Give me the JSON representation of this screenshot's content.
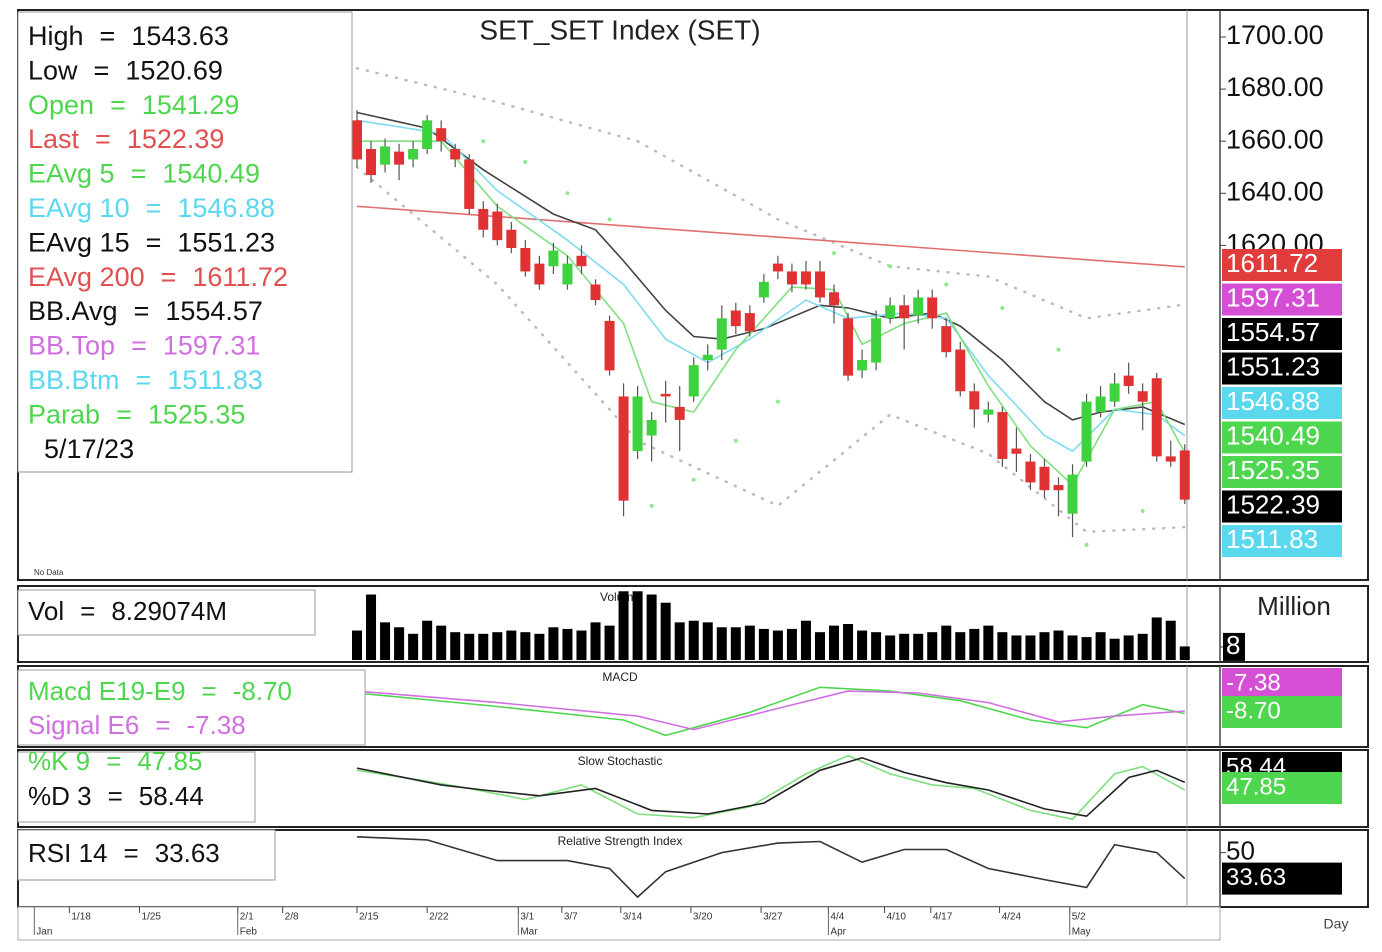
{
  "chart_data": [
    {
      "type": "candlestick",
      "title": "SET_SET Index (SET)",
      "date": "5/17/23",
      "no_data": "No Data",
      "ylim": [
        1492.3,
        1709.6
      ],
      "yticks": [
        {
          "value": 1700,
          "label": "1700.00"
        },
        {
          "value": 1680,
          "label": "1680.00"
        },
        {
          "value": 1660,
          "label": "1660.00"
        },
        {
          "value": 1640,
          "label": "1640.00"
        },
        {
          "value": 1620,
          "label": "1620.00"
        }
      ],
      "up_color": "#3fd23f",
      "down_color": "#e03232",
      "info": [
        {
          "label": "High",
          "eq": "=",
          "value": "1543.63",
          "color": "#111111"
        },
        {
          "label": "Low",
          "eq": "=",
          "value": "1520.69",
          "color": "#111111"
        },
        {
          "label": "Open",
          "eq": "=",
          "value": "1541.29",
          "color": "#4fd64f"
        },
        {
          "label": "Last",
          "eq": "=",
          "value": "1522.39",
          "color": "#e05050"
        },
        {
          "label": "EAvg 5",
          "eq": "=",
          "value": "1540.49",
          "color": "#4fd64f"
        },
        {
          "label": "EAvg 10",
          "eq": "=",
          "value": "1546.88",
          "color": "#5cd8ee"
        },
        {
          "label": "EAvg 15",
          "eq": "=",
          "value": "1551.23",
          "color": "#111111"
        },
        {
          "label": "EAvg 200",
          "eq": "=",
          "value": "1611.72",
          "color": "#e05050"
        },
        {
          "label": "BB.Avg",
          "eq": "=",
          "value": "1554.57",
          "color": "#111111"
        },
        {
          "label": "BB.Top",
          "eq": "=",
          "value": "1597.31",
          "color": "#d070e0"
        },
        {
          "label": "BB.Btm",
          "eq": "=",
          "value": "1511.83",
          "color": "#5cd8ee"
        },
        {
          "label": "Parab",
          "eq": "=",
          "value": "1525.35",
          "color": "#4fd64f"
        }
      ],
      "candles": {
        "open": [
          1668,
          1657,
          1651,
          1656,
          1653,
          1657,
          1665,
          1657,
          1653,
          1634,
          1633,
          1626,
          1619,
          1613,
          1612,
          1605,
          1616,
          1605,
          1591,
          1562,
          1541,
          1547,
          1563,
          1558,
          1562,
          1576,
          1580,
          1595,
          1594,
          1600,
          1613,
          1610,
          1610,
          1610,
          1602,
          1592,
          1572,
          1575,
          1592,
          1597,
          1593,
          1600,
          1589,
          1580,
          1564,
          1555,
          1556,
          1542,
          1537,
          1535,
          1528,
          1517,
          1537,
          1556,
          1560,
          1570,
          1564,
          1569,
          1539,
          1541.29
        ],
        "high": [
          1672,
          1660,
          1661,
          1659,
          1660,
          1670,
          1668,
          1659,
          1655,
          1637,
          1636,
          1629,
          1622,
          1616,
          1621,
          1616,
          1620,
          1607,
          1593,
          1567,
          1566,
          1556,
          1568,
          1566,
          1577,
          1582,
          1597,
          1598,
          1597,
          1609,
          1616,
          1613,
          1614,
          1614,
          1605,
          1594,
          1580,
          1595,
          1600,
          1601,
          1603,
          1603,
          1592,
          1583,
          1567,
          1560,
          1558,
          1550,
          1540,
          1538,
          1531,
          1536,
          1563,
          1566,
          1571,
          1575,
          1567,
          1571,
          1545,
          1543.63
        ],
        "low": [
          1650,
          1644,
          1648,
          1645,
          1650,
          1655,
          1656,
          1650,
          1632,
          1623,
          1620,
          1617,
          1608,
          1603,
          1609,
          1603,
          1609,
          1597,
          1570,
          1516,
          1538,
          1537,
          1552,
          1541,
          1560,
          1572,
          1576,
          1586,
          1585,
          1598,
          1607,
          1602,
          1603,
          1598,
          1590,
          1568,
          1569,
          1572,
          1590,
          1580,
          1590,
          1588,
          1577,
          1562,
          1550,
          1552,
          1535,
          1533,
          1526,
          1523,
          1516,
          1508,
          1535,
          1554,
          1558,
          1563,
          1549,
          1537,
          1535,
          1520.69
        ],
        "close": [
          1653,
          1647,
          1658,
          1651,
          1657,
          1668,
          1660,
          1653,
          1634,
          1626,
          1622,
          1619,
          1610,
          1605,
          1618,
          1613,
          1612,
          1599,
          1572,
          1522,
          1562,
          1553,
          1562,
          1553,
          1574,
          1578,
          1592,
          1589,
          1587,
          1606,
          1610,
          1605,
          1605,
          1600,
          1597,
          1570,
          1576,
          1592,
          1597,
          1592,
          1600,
          1592,
          1579,
          1564,
          1557,
          1557,
          1538,
          1540,
          1529,
          1526,
          1526,
          1532,
          1560,
          1562,
          1567,
          1566,
          1560,
          1539,
          1537,
          1522.39
        ]
      },
      "overlays": [
        {
          "color": "#bbbbbb",
          "dash": true,
          "x": [
            0,
            10,
            20,
            30,
            38,
            45,
            52,
            59
          ],
          "values": [
            1688,
            1675,
            1660,
            1630,
            1612,
            1608,
            1592,
            1597.31
          ]
        },
        {
          "color": "#bbbbbb",
          "dash": true,
          "x": [
            0,
            10,
            20,
            30,
            38,
            45,
            52,
            59
          ],
          "values": [
            1650,
            1605,
            1545,
            1520,
            1555,
            1540,
            1510,
            1511.83
          ]
        },
        {
          "color": "#e07070",
          "x": [
            0,
            59
          ],
          "values": [
            1635,
            1611.72
          ]
        },
        {
          "color": "#444444",
          "x": [
            0,
            5,
            9,
            14,
            17,
            19,
            22,
            24,
            26,
            29,
            33,
            35,
            38,
            41,
            43,
            46,
            49,
            51,
            53,
            56,
            59
          ],
          "values": [
            1671,
            1665,
            1649,
            1632,
            1626,
            1614,
            1595,
            1585,
            1584,
            1588,
            1597,
            1596,
            1592,
            1594,
            1589,
            1576,
            1560,
            1553,
            1556,
            1558,
            1551.23
          ]
        },
        {
          "color": "#7fdcef",
          "x": [
            0,
            6,
            10,
            15,
            19,
            22,
            25,
            28,
            32,
            35,
            39,
            42,
            45,
            49,
            51,
            54,
            57,
            59
          ],
          "values": [
            1668,
            1663,
            1641,
            1622,
            1605,
            1584,
            1575,
            1584,
            1599,
            1592,
            1594,
            1592,
            1570,
            1547,
            1541,
            1557,
            1555,
            1546.88
          ]
        },
        {
          "color": "#7fe07f",
          "x": [
            0,
            6,
            10,
            15,
            19,
            21,
            24,
            27,
            31,
            34,
            36,
            39,
            42,
            45,
            48,
            51,
            54,
            57,
            59
          ],
          "values": [
            1660,
            1660,
            1635,
            1616,
            1590,
            1560,
            1556,
            1580,
            1604,
            1603,
            1582,
            1590,
            1594,
            1566,
            1543,
            1528,
            1557,
            1560,
            1540.49
          ]
        },
        {
          "color": "#8ee88e",
          "dots": true,
          "x": [
            9,
            12,
            15,
            18,
            21,
            24,
            27,
            30,
            34,
            38,
            42,
            46,
            50,
            52,
            56,
            59
          ],
          "values": [
            1660,
            1652,
            1640,
            1630,
            1520,
            1530,
            1545,
            1560,
            1617,
            1612,
            1605,
            1596,
            1580,
            1505,
            1518,
            1525.35
          ]
        }
      ],
      "tags": [
        {
          "value": 1611.72,
          "bg": "#e03c3c",
          "fg": "#ffffff"
        },
        {
          "value": 1597.31,
          "bg": "#d44fd4",
          "fg": "#ffffff"
        },
        {
          "value": 1554.57,
          "bg": "#000000",
          "fg": "#ffffff"
        },
        {
          "value": 1551.23,
          "bg": "#000000",
          "fg": "#ffffff"
        },
        {
          "value": 1546.88,
          "bg": "#5cd8ee",
          "fg": "#ffffff"
        },
        {
          "value": 1540.49,
          "bg": "#4fd64f",
          "fg": "#ffffff"
        },
        {
          "value": 1525.35,
          "bg": "#4fd64f",
          "fg": "#ffffff"
        },
        {
          "value": 1522.39,
          "bg": "#000000",
          "fg": "#ffffff"
        },
        {
          "value": 1511.83,
          "bg": "#5cd8ee",
          "fg": "#ffffff"
        }
      ]
    },
    {
      "type": "bar",
      "title": "Volume",
      "unit": "Million",
      "color": "#000000",
      "info": [
        {
          "label": "Vol",
          "eq": "=",
          "value": "8.29074M",
          "color": "#111111"
        }
      ],
      "ylim": [
        0,
        44
      ],
      "yticks": [
        8
      ],
      "values": [
        18,
        40,
        23,
        20,
        16,
        24,
        21,
        17,
        16,
        16,
        17,
        18,
        17,
        16,
        20,
        19,
        18,
        23,
        21,
        42,
        42,
        40,
        35,
        23,
        24,
        23,
        20,
        20,
        21,
        19,
        18,
        19,
        24,
        17,
        21,
        22,
        18,
        17,
        15,
        16,
        16,
        17,
        21,
        17,
        19,
        21,
        17,
        15,
        15,
        17,
        18,
        15,
        14,
        17,
        13,
        15,
        16,
        26,
        24,
        8.29074
      ]
    },
    {
      "type": "line",
      "title": "MACD",
      "ylim": [
        -25,
        15
      ],
      "info": [
        {
          "label": "Macd E19-E9",
          "eq": "=",
          "value": "-8.70",
          "color": "#4fd64f"
        },
        {
          "label": "Signal E6",
          "eq": "=",
          "value": "-7.38",
          "color": "#d070e0"
        }
      ],
      "series": [
        {
          "color": "#4fd64f",
          "x": [
            0,
            10,
            19,
            22,
            28,
            33,
            38,
            43,
            48,
            52,
            56,
            59
          ],
          "values": [
            2,
            -5,
            -12,
            -20,
            -8,
            5,
            3,
            -2,
            -12,
            -16,
            -4,
            -8.7
          ]
        },
        {
          "color": "#d070e0",
          "x": [
            0,
            10,
            20,
            24,
            30,
            35,
            40,
            45,
            50,
            54,
            59
          ],
          "values": [
            3,
            -3,
            -10,
            -17,
            -6,
            3,
            2,
            -3,
            -13,
            -10,
            -7.38
          ]
        }
      ],
      "tags": [
        {
          "value": -7.38,
          "label": "-7.38",
          "bg": "#d44fd4",
          "fg": "#ffffff"
        },
        {
          "value": -8.7,
          "label": "-8.70",
          "bg": "#4fd64f",
          "fg": "#ffffff"
        }
      ]
    },
    {
      "type": "line",
      "title": "Slow Stochastic",
      "ylim": [
        0,
        100
      ],
      "info": [
        {
          "label": "%K 9",
          "eq": "=",
          "value": "47.85",
          "color": "#4fd64f"
        },
        {
          "label": "%D 3",
          "eq": "=",
          "value": "58.44",
          "color": "#111111"
        }
      ],
      "series": [
        {
          "color": "#7fe07f",
          "x": [
            0,
            5,
            8,
            12,
            16,
            20,
            24,
            28,
            32,
            35,
            38,
            41,
            44,
            48,
            51,
            54,
            56,
            59
          ],
          "values": [
            75,
            60,
            50,
            35,
            55,
            15,
            10,
            25,
            70,
            95,
            70,
            55,
            50,
            20,
            8,
            70,
            80,
            47.85
          ]
        },
        {
          "color": "#222222",
          "x": [
            0,
            6,
            9,
            13,
            17,
            21,
            25,
            29,
            33,
            36,
            39,
            42,
            45,
            49,
            52,
            55,
            57,
            59
          ],
          "values": [
            78,
            55,
            48,
            40,
            50,
            20,
            15,
            30,
            75,
            92,
            72,
            58,
            48,
            22,
            12,
            65,
            75,
            58.44
          ]
        }
      ],
      "tags": [
        {
          "value": 58.44,
          "label": "58.44",
          "bg": "#000000",
          "fg": "#ffffff"
        },
        {
          "value": 47.85,
          "label": "47.85",
          "bg": "#4fd64f",
          "fg": "#ffffff"
        }
      ]
    },
    {
      "type": "line",
      "title": "Relative Strength Index",
      "ylim": [
        17,
        63
      ],
      "yticks": [
        50
      ],
      "info": [
        {
          "label": "RSI 14",
          "eq": "=",
          "value": "33.63",
          "color": "#111111"
        }
      ],
      "series": [
        {
          "color": "#333333",
          "x": [
            0,
            5,
            10,
            15,
            18,
            20,
            22,
            26,
            30,
            33,
            36,
            39,
            42,
            45,
            49,
            52,
            54,
            57,
            59
          ],
          "values": [
            60,
            58,
            45,
            45,
            40,
            22,
            38,
            50,
            56,
            57,
            44,
            52,
            52,
            40,
            33,
            28,
            55,
            50,
            33.63
          ]
        }
      ],
      "tags": [
        {
          "value": 33.63,
          "label": "33.63",
          "bg": "#000000",
          "fg": "#ffffff",
          "at_value": true
        }
      ]
    }
  ],
  "x_axis": {
    "unit": "Day",
    "ticks": [
      {
        "value": -20.5,
        "label": "1/18"
      },
      {
        "value": -15.5,
        "label": "1/25"
      },
      {
        "value": -8.5,
        "label": "2/1"
      },
      {
        "value": -5.3,
        "label": "2/8"
      },
      {
        "value": 0,
        "label": "2/15"
      },
      {
        "value": 5,
        "label": "2/22"
      },
      {
        "value": 11.5,
        "label": "3/1"
      },
      {
        "value": 14.6,
        "label": "3/7"
      },
      {
        "value": 18.8,
        "label": "3/14"
      },
      {
        "value": 23.8,
        "label": "3/20"
      },
      {
        "value": 28.8,
        "label": "3/27"
      },
      {
        "value": 33.6,
        "label": "4/4"
      },
      {
        "value": 37.6,
        "label": "4/10"
      },
      {
        "value": 40.9,
        "label": "4/17"
      },
      {
        "value": 45.8,
        "label": "4/24"
      },
      {
        "value": 50.8,
        "label": "5/2"
      }
    ],
    "months": [
      {
        "value": -23,
        "label": "Jan"
      },
      {
        "value": -8.5,
        "label": "Feb"
      },
      {
        "value": 11.5,
        "label": "Mar"
      },
      {
        "value": 33.6,
        "label": "Apr"
      },
      {
        "value": 50.8,
        "label": "May"
      }
    ]
  }
}
